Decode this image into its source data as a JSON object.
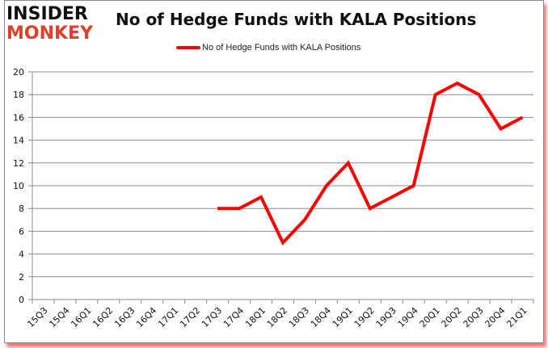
{
  "logo": {
    "line1": "INSIDER",
    "line2": "MONKEY"
  },
  "title": "No of Hedge Funds with KALA Positions",
  "legend": {
    "label": "No of Hedge Funds with KALA Positions",
    "color": "#ff0000"
  },
  "chart_data": {
    "type": "line",
    "title": "No of Hedge Funds with KALA Positions",
    "xlabel": "",
    "ylabel": "",
    "ylim": [
      0,
      20
    ],
    "yticks": [
      0,
      2,
      4,
      6,
      8,
      10,
      12,
      14,
      16,
      18,
      20
    ],
    "grid": true,
    "legend_position": "top",
    "categories": [
      "15Q3",
      "15Q4",
      "16Q1",
      "16Q2",
      "16Q3",
      "16Q4",
      "17Q1",
      "17Q2",
      "17Q3",
      "17Q4",
      "18Q1",
      "18Q2",
      "18Q3",
      "18Q4",
      "19Q1",
      "19Q2",
      "19Q3",
      "19Q4",
      "20Q1",
      "20Q2",
      "20Q3",
      "20Q4",
      "21Q1"
    ],
    "series": [
      {
        "name": "No of Hedge Funds with KALA Positions",
        "color": "#ff0000",
        "values": [
          null,
          null,
          null,
          null,
          null,
          null,
          null,
          null,
          8,
          8,
          9,
          5,
          7,
          10,
          12,
          8,
          9,
          10,
          18,
          19,
          18,
          15,
          16
        ]
      }
    ]
  }
}
